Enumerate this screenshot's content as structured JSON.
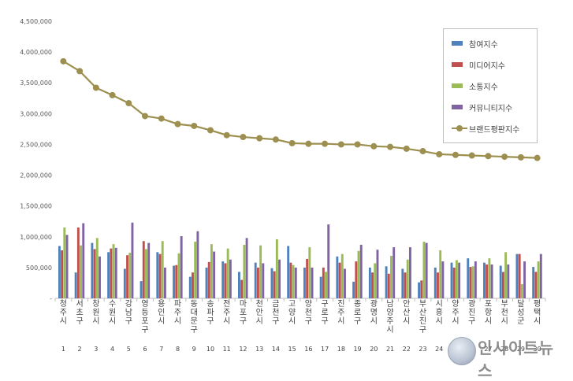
{
  "chart_data": {
    "type": "bar",
    "title": "",
    "xlabel": "",
    "ylabel": "",
    "ylim": [
      0,
      4500000
    ],
    "y_ticks": [
      "-",
      "500,000",
      "1,000,000",
      "1,500,000",
      "2,000,000",
      "2,500,000",
      "3,000,000",
      "3,500,000",
      "4,000,000",
      "4,500,000"
    ],
    "grid": false,
    "legend_position": "top-right",
    "categories": [
      "청주시",
      "서초구",
      "창원시",
      "수원시",
      "강남구",
      "영등포구",
      "용인시",
      "파주시",
      "동대문구",
      "송파구",
      "전주시",
      "마포구",
      "천안시",
      "금천구",
      "고양시",
      "양천구",
      "구로구",
      "진주시",
      "종로구",
      "광명시",
      "남양주시",
      "안산시",
      "부산진구",
      "시흥시",
      "양주시",
      "광진구",
      "포항시",
      "부천시",
      "달성군",
      "평택시"
    ],
    "ranks": [
      "1",
      "2",
      "3",
      "4",
      "5",
      "6",
      "7",
      "8",
      "9",
      "10",
      "11",
      "12",
      "13",
      "14",
      "15",
      "16",
      "17",
      "18",
      "19",
      "20",
      "21",
      "22",
      "23",
      "24",
      "25",
      "26",
      "27",
      "28",
      "29",
      "30"
    ],
    "series": [
      {
        "name": "참여지수",
        "color": "#4f81bd",
        "kind": "bar",
        "values": [
          850000,
          420000,
          900000,
          750000,
          480000,
          280000,
          750000,
          530000,
          350000,
          500000,
          600000,
          430000,
          580000,
          490000,
          850000,
          500000,
          350000,
          680000,
          270000,
          500000,
          520000,
          480000,
          260000,
          500000,
          580000,
          650000,
          580000,
          530000,
          720000,
          510000
        ]
      },
      {
        "name": "미디어지수",
        "color": "#c0504d",
        "kind": "bar",
        "values": [
          780000,
          1150000,
          800000,
          810000,
          700000,
          930000,
          720000,
          540000,
          420000,
          590000,
          570000,
          300000,
          500000,
          440000,
          580000,
          640000,
          500000,
          580000,
          600000,
          420000,
          400000,
          420000,
          290000,
          420000,
          500000,
          510000,
          550000,
          430000,
          720000,
          430000
        ]
      },
      {
        "name": "소통지수",
        "color": "#9bbb59",
        "kind": "bar",
        "values": [
          1150000,
          860000,
          980000,
          880000,
          740000,
          800000,
          930000,
          730000,
          920000,
          880000,
          810000,
          870000,
          860000,
          960000,
          540000,
          830000,
          430000,
          720000,
          770000,
          570000,
          690000,
          630000,
          920000,
          780000,
          620000,
          520000,
          650000,
          750000,
          230000,
          600000
        ]
      },
      {
        "name": "커뮤니티지수",
        "color": "#8064a2",
        "kind": "bar",
        "values": [
          1030000,
          1220000,
          680000,
          820000,
          1230000,
          900000,
          500000,
          1010000,
          1090000,
          760000,
          630000,
          980000,
          570000,
          630000,
          500000,
          500000,
          1200000,
          480000,
          870000,
          790000,
          830000,
          830000,
          900000,
          600000,
          580000,
          600000,
          550000,
          550000,
          600000,
          720000
        ]
      },
      {
        "name": "브랜드평판지수",
        "color": "#9c8f4f",
        "kind": "line",
        "values": [
          3850000,
          3690000,
          3420000,
          3300000,
          3170000,
          2960000,
          2920000,
          2830000,
          2800000,
          2730000,
          2650000,
          2620000,
          2600000,
          2580000,
          2520000,
          2510000,
          2510000,
          2500000,
          2500000,
          2470000,
          2460000,
          2430000,
          2390000,
          2340000,
          2330000,
          2320000,
          2310000,
          2300000,
          2290000,
          2280000
        ]
      }
    ]
  },
  "watermark": {
    "text": "인사이트뉴스"
  }
}
